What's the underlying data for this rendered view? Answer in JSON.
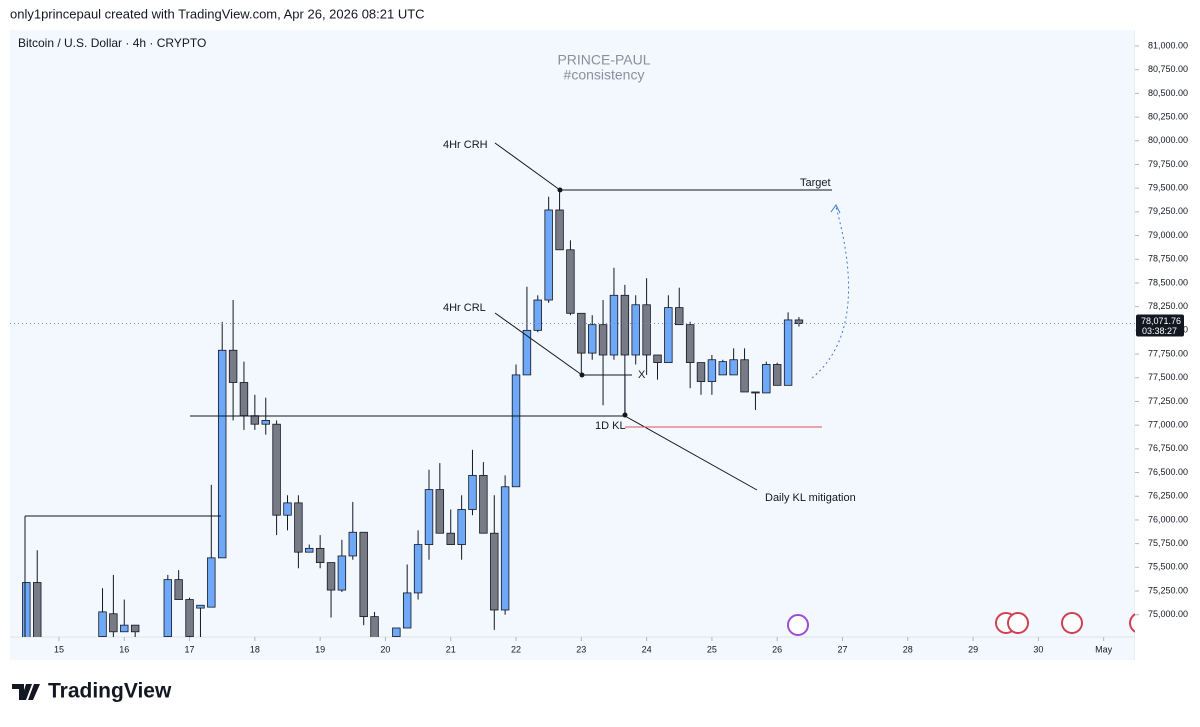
{
  "header": "only1princepaul created with TradingView.com, Apr 26, 2026 08:21 UTC",
  "logo": "TradingView",
  "chart_data": {
    "type": "candlestick",
    "title": "Bitcoin / U.S. Dollar · 4h · CRYPTO",
    "watermark": [
      "PRINCE-PAUL",
      "#consistency"
    ],
    "annotations": [
      "4Hr CRH",
      "4Hr CRL",
      "Target",
      "X",
      "1D KL",
      "Daily KL mitigation"
    ],
    "up_color": "#6ea8f7",
    "down_color": "#787b86",
    "x": [
      14.5,
      14.667,
      15.667,
      15.833,
      16,
      16.167,
      16.667,
      16.833,
      17,
      17.167,
      17.333,
      17.5,
      17.667,
      17.833,
      18,
      18.167,
      18.333,
      18.5,
      18.667,
      18.833,
      19,
      19.167,
      19.333,
      19.5,
      19.667,
      19.833,
      20.167,
      20.333,
      20.5,
      20.667,
      20.833,
      21,
      21.167,
      21.333,
      21.5,
      21.667,
      21.833,
      22,
      22.167,
      22.333,
      22.5,
      22.667,
      22.833,
      23,
      23.167,
      23.333,
      23.5,
      23.667,
      23.833,
      24,
      24.167,
      24.333,
      24.5,
      24.667,
      24.833,
      25,
      25.167,
      25.333,
      25.5,
      25.667,
      25.833,
      26,
      26.167,
      26.333
    ],
    "open": [
      74700,
      75340,
      74770,
      75010,
      74820,
      74890,
      74770,
      75370,
      75160,
      75070,
      75080,
      75600,
      77790,
      77450,
      77100,
      77010,
      77010,
      76050,
      76180,
      75660,
      75700,
      75550,
      75260,
      75620,
      75870,
      74980,
      74770,
      74860,
      75230,
      75740,
      76320,
      75860,
      75740,
      76110,
      76470,
      75860,
      75050,
      76350,
      77530,
      78000,
      78320,
      79270,
      78850,
      78180,
      77760,
      78060,
      77740,
      78370,
      77740,
      78270,
      77740,
      77660,
      78240,
      78060,
      77660,
      77460,
      77530,
      77530,
      77690,
      77350,
      77340,
      77640,
      77420,
      78110
    ],
    "high": [
      75340,
      75680,
      75280,
      75420,
      75160,
      74890,
      75420,
      75470,
      75180,
      75100,
      76370,
      78090,
      78320,
      77670,
      77320,
      77290,
      77050,
      76260,
      76260,
      75740,
      75840,
      75550,
      75790,
      76190,
      75870,
      75030,
      74860,
      75530,
      75890,
      76530,
      76600,
      76110,
      76260,
      76740,
      76610,
      76260,
      76470,
      77640,
      78460,
      78370,
      79410,
      79480,
      78950,
      78180,
      78160,
      78320,
      78660,
      78480,
      78370,
      78550,
      77740,
      78370,
      78450,
      78090,
      77660,
      77740,
      77690,
      77810,
      77810,
      77350,
      77670,
      77660,
      78190,
      78140
    ],
    "low": [
      74700,
      74700,
      74700,
      74700,
      74820,
      74700,
      74700,
      75160,
      74700,
      74700,
      75080,
      75600,
      77050,
      76950,
      76950,
      76900,
      75840,
      75890,
      75490,
      75660,
      75490,
      74970,
      75240,
      75580,
      74890,
      74700,
      74700,
      74860,
      75160,
      75580,
      75860,
      75740,
      75580,
      76050,
      75860,
      74840,
      75000,
      76350,
      77530,
      77980,
      78290,
      78850,
      78160,
      77530,
      77690,
      77210,
      77690,
      77130,
      77640,
      77530,
      77480,
      77660,
      78060,
      77390,
      77320,
      77320,
      77530,
      77530,
      77350,
      77160,
      77340,
      77420,
      77420,
      78040
    ],
    "close": [
      75340,
      74700,
      75030,
      74820,
      74890,
      74820,
      75370,
      75160,
      74770,
      75100,
      75600,
      77790,
      77450,
      77100,
      77010,
      77050,
      76050,
      76180,
      75660,
      75700,
      75550,
      75260,
      75620,
      75870,
      74980,
      74700,
      74860,
      75230,
      75740,
      76320,
      75860,
      75740,
      76110,
      76470,
      75860,
      75050,
      76350,
      77530,
      78000,
      78320,
      79270,
      78850,
      78180,
      77760,
      78060,
      77740,
      78370,
      77740,
      78270,
      77740,
      77660,
      78240,
      78060,
      77660,
      77460,
      77690,
      77670,
      77690,
      77350,
      77340,
      77640,
      77420,
      78110,
      78071.76
    ],
    "xlim": [
      14.25,
      31.48
    ],
    "xticks": [
      15,
      16,
      17,
      18,
      19,
      20,
      21,
      22,
      23,
      24,
      25,
      26,
      27,
      28,
      29,
      30,
      {
        "value": 31,
        "label": "May"
      }
    ],
    "ylim": [
      74765,
      81116
    ],
    "yticks": [
      {
        "value": 75000,
        "label": "75,000.00"
      },
      {
        "value": 75250,
        "label": "75,250.00"
      },
      {
        "value": 75500,
        "label": "75,500.00"
      },
      {
        "value": 75750,
        "label": "75,750.00"
      },
      {
        "value": 76000,
        "label": "76,000.00"
      },
      {
        "value": 76250,
        "label": "76,250.00"
      },
      {
        "value": 76500,
        "label": "76,500.00"
      },
      {
        "value": 76750,
        "label": "76,750.00"
      },
      {
        "value": 77000,
        "label": "77,000.00"
      },
      {
        "value": 77250,
        "label": "77,250.00"
      },
      {
        "value": 77500,
        "label": "77,500.00"
      },
      {
        "value": 77750,
        "label": "77,750.00"
      },
      {
        "value": 78000,
        "label": "78,000.00"
      },
      {
        "value": 78250,
        "label": "78,250.00"
      },
      {
        "value": 78500,
        "label": "78,500.00"
      },
      {
        "value": 78750,
        "label": "78,750.00"
      },
      {
        "value": 79000,
        "label": "79,000.00"
      },
      {
        "value": 79250,
        "label": "79,250.00"
      },
      {
        "value": 79500,
        "label": "79,500.00"
      },
      {
        "value": 79750,
        "label": "79,750.00"
      },
      {
        "value": 80000,
        "label": "80,000.00"
      },
      {
        "value": 80250,
        "label": "80,250.00"
      },
      {
        "value": 80500,
        "label": "80,500.00"
      },
      {
        "value": 80750,
        "label": "80,750.00"
      },
      {
        "value": 81000,
        "label": "81,000.00"
      }
    ],
    "current_price": {
      "value": 78071.76,
      "label": "78,071.76"
    },
    "countdown": "03:38:27"
  }
}
